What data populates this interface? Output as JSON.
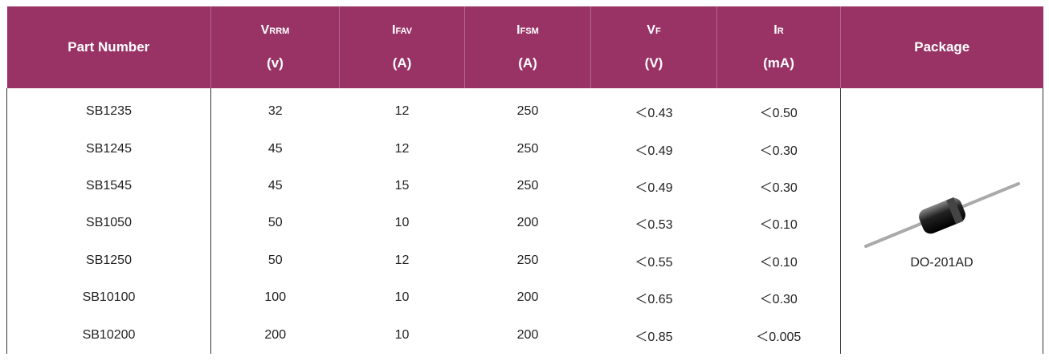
{
  "table": {
    "columns": [
      {
        "label": "Part Number"
      },
      {
        "symbol": "V",
        "subscript": "RRM",
        "unit": "(v)"
      },
      {
        "symbol": "I",
        "subscript": "FAV",
        "unit": "(A)"
      },
      {
        "symbol": "I",
        "subscript": "FSM",
        "unit": "(A)"
      },
      {
        "symbol": "V",
        "subscript": "F",
        "unit": "(V)"
      },
      {
        "symbol": "I",
        "subscript": "R",
        "unit": "(mA)"
      },
      {
        "label": "Package"
      }
    ],
    "rows": [
      [
        "SB1235",
        32,
        12,
        250,
        "＜0.43",
        "＜0.50"
      ],
      [
        "SB1245",
        45,
        12,
        250,
        "＜0.49",
        "＜0.30"
      ],
      [
        "SB1545",
        45,
        15,
        250,
        "＜0.49",
        "＜0.30"
      ],
      [
        "SB1050",
        50,
        10,
        200,
        "＜0.53",
        "＜0.10"
      ],
      [
        "SB1250",
        50,
        12,
        250,
        "＜0.55",
        "＜0.10"
      ],
      [
        "SB10100",
        100,
        10,
        200,
        "＜0.65",
        "＜0.30"
      ],
      [
        "SB10200",
        200,
        10,
        200,
        "＜0.85",
        "＜0.005"
      ]
    ],
    "package": "DO-201AD"
  }
}
